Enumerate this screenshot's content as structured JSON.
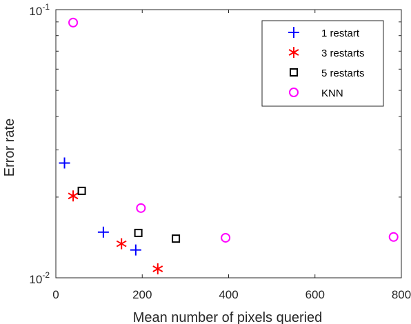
{
  "chart_data": {
    "type": "scatter",
    "xlabel": "Mean number of pixels queried",
    "ylabel": "Error rate",
    "xlim": [
      0,
      800
    ],
    "ylim": [
      0.01,
      0.1
    ],
    "yscale": "log",
    "xticks": [
      "0",
      "200",
      "400",
      "600",
      "800"
    ],
    "yticks": [
      {
        "base": "10",
        "exp": "-2",
        "value": 0.01
      },
      {
        "base": "10",
        "exp": "-1",
        "value": 0.1
      }
    ],
    "grid": false,
    "legend_position": "top-right",
    "series": [
      {
        "name": "1 restart",
        "marker": "plus",
        "color": "#0000ff",
        "points": [
          [
            20,
            0.0268
          ],
          [
            110,
            0.0148
          ],
          [
            185,
            0.0127
          ]
        ]
      },
      {
        "name": "3 restarts",
        "marker": "asterisk",
        "color": "#ff0000",
        "points": [
          [
            40,
            0.0202
          ],
          [
            152,
            0.0134
          ],
          [
            236,
            0.0108
          ]
        ]
      },
      {
        "name": "5 restarts",
        "marker": "square",
        "color": "#000000",
        "points": [
          [
            60,
            0.0211
          ],
          [
            191,
            0.0147
          ],
          [
            278,
            0.014
          ]
        ]
      },
      {
        "name": "KNN",
        "marker": "circle",
        "color": "#ff00ff",
        "points": [
          [
            40,
            0.0895
          ],
          [
            197,
            0.0182
          ],
          [
            393,
            0.0141
          ],
          [
            782,
            0.0142
          ]
        ]
      }
    ]
  }
}
